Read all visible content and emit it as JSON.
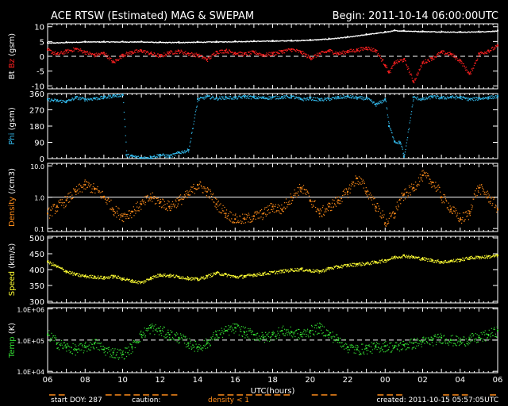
{
  "header": {
    "title": "ACE RTSW (Estimated) MAG & SWEPAM",
    "begin": "Begin: 2011-10-14 06:00:00UTC"
  },
  "footer": {
    "start_doy": "start DOY: 287",
    "caution": "caution:",
    "density_note": "density < 1",
    "created": "created: 2011-10-15 05:57:05UTC"
  },
  "colors": {
    "background": "#000000",
    "frame": "#ffffff",
    "bt": "#ffffff",
    "bz": "#ff2020",
    "phi": "#33bbee",
    "density": "#ff8c1a",
    "speed": "#ffff33",
    "temp": "#33dd33",
    "caution": "#ff8c1a"
  },
  "chart_data": [
    {
      "type": "scatter",
      "panel": "mag_b",
      "title": "ACE RTSW (Estimated) MAG & SWEPAM",
      "ylabel_parts": [
        "Bt",
        "Bz",
        "(gsm)"
      ],
      "ylim": [
        -11,
        11
      ],
      "yticks": [
        10,
        5,
        0,
        -5,
        -10
      ],
      "reference_line": 0,
      "xlim": [
        0,
        24
      ],
      "series": [
        {
          "name": "Bt",
          "color": "#ffffff",
          "x": [
            0,
            1,
            2,
            3,
            4,
            5,
            6,
            7,
            8,
            9,
            10,
            11,
            12,
            13,
            14,
            15,
            16,
            17,
            18,
            18.5,
            19,
            20,
            21,
            22,
            23,
            24
          ],
          "y": [
            4.6,
            4.8,
            5.0,
            5.0,
            5.0,
            5.0,
            4.8,
            4.8,
            4.9,
            5.0,
            5.1,
            5.2,
            5.3,
            5.4,
            5.6,
            6.0,
            6.6,
            7.5,
            8.3,
            8.8,
            8.7,
            8.5,
            8.4,
            8.3,
            8.4,
            8.7
          ]
        },
        {
          "name": "Bz",
          "color": "#ff2020",
          "x": [
            0,
            0.5,
            1,
            1.5,
            2,
            2.5,
            3,
            3.5,
            4,
            4.5,
            5,
            5.5,
            6,
            6.5,
            7,
            7.5,
            8,
            8.5,
            9,
            9.5,
            10,
            10.5,
            11,
            11.5,
            12,
            12.5,
            13,
            13.5,
            14,
            14.5,
            15,
            15.5,
            16,
            16.5,
            17,
            17.5,
            18,
            18.2,
            18.5,
            19,
            19.5,
            20,
            20.5,
            21,
            21.5,
            22,
            22.5,
            23,
            23.5,
            24
          ],
          "y": [
            2.2,
            0.8,
            1.8,
            2.6,
            1.5,
            0.5,
            1.2,
            -2.0,
            0.6,
            1.5,
            2.0,
            1.0,
            0.2,
            1.4,
            1.8,
            1.0,
            0.5,
            -1.0,
            1.6,
            2.0,
            1.2,
            0.8,
            1.5,
            0.5,
            1.0,
            1.8,
            2.4,
            1.5,
            -0.5,
            1.0,
            2.0,
            1.0,
            1.8,
            2.2,
            3.0,
            2.0,
            -3.0,
            -5.5,
            -2.0,
            -1.0,
            -8.5,
            -2.0,
            -0.5,
            1.5,
            0.8,
            -1.5,
            -6.0,
            1.0,
            2.0,
            3.6
          ]
        }
      ]
    },
    {
      "type": "scatter",
      "panel": "mag_phi",
      "ylabel_parts": [
        "Phi",
        "(gsm)"
      ],
      "ylim": [
        0,
        360
      ],
      "yticks": [
        360,
        270,
        180,
        90,
        0
      ],
      "xlim": [
        0,
        24
      ],
      "series": [
        {
          "name": "Phi",
          "color": "#33bbee",
          "x": [
            0,
            0.5,
            1,
            1.5,
            2,
            2.5,
            3,
            3.5,
            4,
            4.2,
            4.5,
            5,
            5.5,
            6,
            6.5,
            7,
            7.5,
            8,
            8.5,
            9,
            9.5,
            10,
            10.5,
            11,
            11.5,
            12,
            12.5,
            13,
            13.5,
            14,
            14.5,
            15,
            15.5,
            16,
            16.5,
            17,
            17.5,
            18,
            18.2,
            18.5,
            18.8,
            19,
            19.5,
            20,
            20.5,
            21,
            21.5,
            22,
            22.5,
            23,
            23.5,
            24
          ],
          "y": [
            328,
            322,
            318,
            340,
            330,
            335,
            340,
            350,
            355,
            20,
            15,
            5,
            10,
            22,
            15,
            35,
            48,
            330,
            345,
            335,
            340,
            338,
            345,
            340,
            338,
            340,
            342,
            345,
            330,
            335,
            328,
            332,
            340,
            345,
            338,
            335,
            300,
            330,
            180,
            95,
            90,
            10,
            340,
            330,
            345,
            338,
            342,
            340,
            330,
            335,
            340,
            345
          ]
        }
      ]
    },
    {
      "type": "scatter",
      "panel": "density",
      "ylabel_parts": [
        "Density",
        "(/cm3)"
      ],
      "yscale": "log",
      "ylim": [
        0.08,
        12
      ],
      "ytick_labels": [
        "10.0",
        "1.0",
        "0.1"
      ],
      "ytick_values": [
        10,
        1,
        0.1
      ],
      "reference_line": 1,
      "xlim": [
        0,
        24
      ],
      "series": [
        {
          "name": "Density",
          "color": "#ff8c1a",
          "x": [
            0,
            0.5,
            1,
            1.5,
            2,
            2.5,
            3,
            3.5,
            4,
            4.5,
            5,
            5.5,
            6,
            6.5,
            7,
            7.5,
            8,
            8.5,
            9,
            9.5,
            10,
            10.5,
            11,
            11.5,
            12,
            12.5,
            13,
            13.5,
            14,
            14.5,
            15,
            15.5,
            16,
            16.5,
            17,
            17.5,
            18,
            18.5,
            19,
            19.5,
            20,
            20.5,
            21,
            21.5,
            22,
            22.5,
            23,
            23.5,
            24
          ],
          "y": [
            0.3,
            0.5,
            0.8,
            1.5,
            2.5,
            1.8,
            1.0,
            0.4,
            0.25,
            0.35,
            0.6,
            1.0,
            0.7,
            0.5,
            0.8,
            1.2,
            2.5,
            1.5,
            0.6,
            0.3,
            0.2,
            0.2,
            0.25,
            0.3,
            0.5,
            0.4,
            1.0,
            2.0,
            0.8,
            0.3,
            0.5,
            0.8,
            1.5,
            4.0,
            1.5,
            0.5,
            0.15,
            0.3,
            1.2,
            2.0,
            5.0,
            3.0,
            1.0,
            0.4,
            0.2,
            0.3,
            2.0,
            1.0,
            0.4
          ]
        }
      ]
    },
    {
      "type": "scatter",
      "panel": "speed",
      "ylabel_parts": [
        "Speed",
        "(km/s)"
      ],
      "ylim": [
        295,
        505
      ],
      "yticks": [
        500,
        450,
        400,
        350,
        300
      ],
      "xlim": [
        0,
        24
      ],
      "series": [
        {
          "name": "Speed",
          "color": "#ffff33",
          "x": [
            0,
            0.5,
            1,
            1.5,
            2,
            2.5,
            3,
            3.5,
            4,
            4.5,
            5,
            5.5,
            6,
            6.5,
            7,
            7.5,
            8,
            8.5,
            9,
            9.5,
            10,
            10.5,
            11,
            11.5,
            12,
            12.5,
            13,
            13.5,
            14,
            14.5,
            15,
            15.5,
            16,
            16.5,
            17,
            17.5,
            18,
            18.5,
            19,
            19.5,
            20,
            20.5,
            21,
            21.5,
            22,
            22.5,
            23,
            23.5,
            24
          ],
          "y": [
            425,
            410,
            395,
            385,
            380,
            378,
            375,
            380,
            372,
            365,
            360,
            375,
            385,
            382,
            378,
            374,
            370,
            380,
            390,
            385,
            378,
            380,
            385,
            388,
            392,
            396,
            400,
            402,
            398,
            395,
            405,
            410,
            415,
            418,
            420,
            425,
            430,
            440,
            445,
            440,
            435,
            430,
            425,
            428,
            432,
            438,
            440,
            442,
            445
          ]
        }
      ]
    },
    {
      "type": "scatter",
      "panel": "temp",
      "ylabel_parts": [
        "Temp",
        "(K)"
      ],
      "yscale": "log",
      "ylim": [
        9000,
        1100000
      ],
      "ytick_labels": [
        "1.0E+06",
        "1.0E+05",
        "1.0E+04"
      ],
      "ytick_values": [
        1000000,
        100000,
        10000
      ],
      "reference_line": 100000,
      "xlim": [
        0,
        24
      ],
      "xlabel": "UTC(hours)",
      "xtick_labels": [
        "06",
        "08",
        "10",
        "12",
        "14",
        "16",
        "18",
        "20",
        "22",
        "00",
        "02",
        "04",
        "06"
      ],
      "xtick_values": [
        0,
        2,
        4,
        6,
        8,
        10,
        12,
        14,
        16,
        18,
        20,
        22,
        24
      ],
      "series": [
        {
          "name": "Temp",
          "color": "#33dd33",
          "x": [
            0,
            0.5,
            1,
            1.5,
            2,
            2.5,
            3,
            3.5,
            4,
            4.5,
            5,
            5.5,
            6,
            6.5,
            7,
            7.5,
            8,
            8.5,
            9,
            9.5,
            10,
            10.5,
            11,
            11.5,
            12,
            12.5,
            13,
            13.5,
            14,
            14.5,
            15,
            15.5,
            16,
            16.5,
            17,
            17.5,
            18,
            18.5,
            19,
            19.5,
            20,
            20.5,
            21,
            21.5,
            22,
            22.5,
            23,
            23.5,
            24
          ],
          "y": [
            150000,
            80000,
            60000,
            50000,
            60000,
            80000,
            50000,
            40000,
            35000,
            60000,
            150000,
            250000,
            200000,
            150000,
            120000,
            80000,
            60000,
            80000,
            150000,
            200000,
            250000,
            180000,
            150000,
            120000,
            150000,
            200000,
            180000,
            150000,
            200000,
            250000,
            150000,
            100000,
            60000,
            50000,
            55000,
            60000,
            65000,
            60000,
            70000,
            80000,
            90000,
            100000,
            120000,
            100000,
            90000,
            110000,
            120000,
            150000,
            200000
          ]
        }
      ]
    }
  ]
}
